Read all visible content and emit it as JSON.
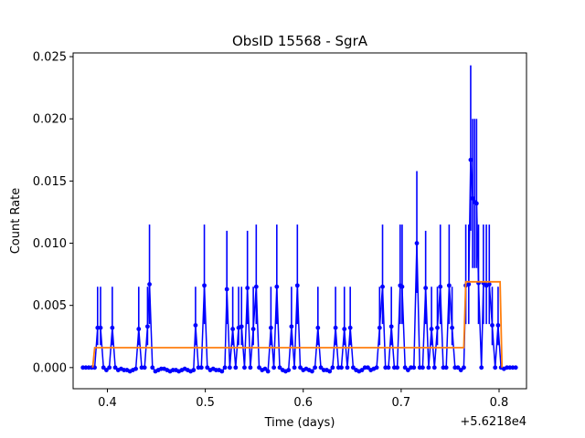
{
  "chart_data": {
    "type": "line",
    "title": "ObsID 15568 - SgrA",
    "xlabel": "Time (days)",
    "ylabel": "Count Rate",
    "x_offset_label": "+5.6218e4",
    "xlim": [
      0.365,
      0.828
    ],
    "ylim": [
      -0.0017,
      0.0253
    ],
    "xticks": [
      0.4,
      0.5,
      0.6,
      0.7,
      0.8
    ],
    "xtick_labels": [
      "0.4",
      "0.5",
      "0.6",
      "0.7",
      "0.8"
    ],
    "yticks": [
      0.0,
      0.005,
      0.01,
      0.015,
      0.02,
      0.025
    ],
    "ytick_labels": [
      "0.000",
      "0.005",
      "0.010",
      "0.015",
      "0.020",
      "0.025"
    ],
    "grid": false,
    "legend": "none",
    "series": [
      {
        "color": "#0000ff",
        "style": "line with markers and error bars",
        "points": [
          [
            0.375,
            0.0
          ],
          [
            0.378,
            0.0
          ],
          [
            0.381,
            0.0
          ],
          [
            0.384,
            0.0
          ],
          [
            0.387,
            0.0
          ],
          [
            0.39,
            0.0032
          ],
          [
            0.393,
            0.0032
          ],
          [
            0.396,
            0.0
          ],
          [
            0.399,
            -0.0002
          ],
          [
            0.402,
            0.0
          ],
          [
            0.405,
            0.0032
          ],
          [
            0.408,
            0.0
          ],
          [
            0.411,
            -0.0002
          ],
          [
            0.414,
            -0.0001
          ],
          [
            0.417,
            -0.0002
          ],
          [
            0.42,
            -0.0002
          ],
          [
            0.423,
            -0.0003
          ],
          [
            0.426,
            -0.0002
          ],
          [
            0.429,
            -0.0001
          ],
          [
            0.432,
            0.0031
          ],
          [
            0.435,
            0.0
          ],
          [
            0.438,
            0.0
          ],
          [
            0.441,
            0.0033
          ],
          [
            0.443,
            0.0067
          ],
          [
            0.446,
            0.0
          ],
          [
            0.449,
            -0.0003
          ],
          [
            0.452,
            -0.0002
          ],
          [
            0.455,
            -0.0001
          ],
          [
            0.458,
            -0.0001
          ],
          [
            0.461,
            -0.0002
          ],
          [
            0.464,
            -0.0003
          ],
          [
            0.467,
            -0.0002
          ],
          [
            0.47,
            -0.0002
          ],
          [
            0.473,
            -0.0003
          ],
          [
            0.476,
            -0.0002
          ],
          [
            0.479,
            -0.0001
          ],
          [
            0.482,
            -0.0002
          ],
          [
            0.485,
            -0.0003
          ],
          [
            0.488,
            -0.0002
          ],
          [
            0.49,
            0.0034
          ],
          [
            0.493,
            0.0
          ],
          [
            0.496,
            0.0
          ],
          [
            0.499,
            0.0066
          ],
          [
            0.502,
            0.0
          ],
          [
            0.505,
            -0.0002
          ],
          [
            0.508,
            -0.0001
          ],
          [
            0.511,
            -0.0002
          ],
          [
            0.514,
            -0.0002
          ],
          [
            0.517,
            -0.0003
          ],
          [
            0.52,
            0.0
          ],
          [
            0.522,
            0.0063
          ],
          [
            0.525,
            0.0
          ],
          [
            0.528,
            0.0031
          ],
          [
            0.531,
            0.0
          ],
          [
            0.534,
            0.0032
          ],
          [
            0.537,
            0.0033
          ],
          [
            0.54,
            0.0
          ],
          [
            0.543,
            0.0064
          ],
          [
            0.546,
            0.0
          ],
          [
            0.549,
            0.0031
          ],
          [
            0.552,
            0.0065
          ],
          [
            0.555,
            0.0
          ],
          [
            0.558,
            -0.0002
          ],
          [
            0.561,
            -0.0001
          ],
          [
            0.564,
            -0.0003
          ],
          [
            0.567,
            0.0032
          ],
          [
            0.57,
            0.0
          ],
          [
            0.573,
            0.0065
          ],
          [
            0.576,
            0.0
          ],
          [
            0.579,
            -0.0002
          ],
          [
            0.582,
            -0.0003
          ],
          [
            0.585,
            -0.0002
          ],
          [
            0.588,
            0.0033
          ],
          [
            0.591,
            0.0
          ],
          [
            0.594,
            0.0066
          ],
          [
            0.597,
            0.0
          ],
          [
            0.6,
            -0.0002
          ],
          [
            0.603,
            -0.0001
          ],
          [
            0.606,
            -0.0002
          ],
          [
            0.609,
            -0.0003
          ],
          [
            0.612,
            0.0
          ],
          [
            0.615,
            0.0032
          ],
          [
            0.618,
            0.0
          ],
          [
            0.621,
            -0.0002
          ],
          [
            0.624,
            -0.0002
          ],
          [
            0.627,
            -0.0003
          ],
          [
            0.63,
            0.0
          ],
          [
            0.633,
            0.0032
          ],
          [
            0.636,
            0.0
          ],
          [
            0.639,
            0.0
          ],
          [
            0.642,
            0.0031
          ],
          [
            0.645,
            0.0
          ],
          [
            0.648,
            0.0032
          ],
          [
            0.651,
            0.0
          ],
          [
            0.654,
            -0.0002
          ],
          [
            0.657,
            -0.0003
          ],
          [
            0.66,
            -0.0002
          ],
          [
            0.663,
            0.0
          ],
          [
            0.666,
            0.0
          ],
          [
            0.669,
            -0.0002
          ],
          [
            0.672,
            -0.0001
          ],
          [
            0.675,
            0.0
          ],
          [
            0.678,
            0.0032
          ],
          [
            0.681,
            0.0065
          ],
          [
            0.684,
            0.0
          ],
          [
            0.687,
            0.0
          ],
          [
            0.69,
            0.0033
          ],
          [
            0.693,
            0.0
          ],
          [
            0.696,
            0.0
          ],
          [
            0.699,
            0.0066
          ],
          [
            0.701,
            0.0065
          ],
          [
            0.704,
            0.0
          ],
          [
            0.707,
            -0.0002
          ],
          [
            0.71,
            0.0
          ],
          [
            0.713,
            0.0
          ],
          [
            0.716,
            0.01
          ],
          [
            0.719,
            0.0
          ],
          [
            0.722,
            0.0
          ],
          [
            0.725,
            0.0064
          ],
          [
            0.728,
            0.0
          ],
          [
            0.731,
            0.0031
          ],
          [
            0.734,
            0.0
          ],
          [
            0.737,
            0.0032
          ],
          [
            0.74,
            0.0065
          ],
          [
            0.743,
            0.0
          ],
          [
            0.746,
            0.0
          ],
          [
            0.749,
            0.0066
          ],
          [
            0.752,
            0.0032
          ],
          [
            0.755,
            0.0
          ],
          [
            0.758,
            0.0
          ],
          [
            0.761,
            -0.0002
          ],
          [
            0.764,
            0.0
          ],
          [
            0.766,
            0.0066
          ],
          [
            0.769,
            0.0067
          ],
          [
            0.771,
            0.0167
          ],
          [
            0.773,
            0.0136
          ],
          [
            0.775,
            0.0133
          ],
          [
            0.777,
            0.0132
          ],
          [
            0.779,
            0.0068
          ],
          [
            0.782,
            0.0
          ],
          [
            0.784,
            0.0068
          ],
          [
            0.787,
            0.0066
          ],
          [
            0.79,
            0.0067
          ],
          [
            0.793,
            0.0034
          ],
          [
            0.796,
            0.0
          ],
          [
            0.799,
            0.0034
          ],
          [
            0.802,
            0.0
          ],
          [
            0.805,
            -0.0001
          ],
          [
            0.808,
            0.0
          ],
          [
            0.811,
            0.0
          ],
          [
            0.814,
            0.0
          ],
          [
            0.817,
            0.0
          ]
        ],
        "error_bars": [
          [
            0.39,
            0.0018,
            0.0065
          ],
          [
            0.393,
            0.0018,
            0.0065
          ],
          [
            0.405,
            0.0018,
            0.0065
          ],
          [
            0.432,
            0.0018,
            0.0065
          ],
          [
            0.441,
            0.0018,
            0.0065
          ],
          [
            0.443,
            0.0035,
            0.0115
          ],
          [
            0.49,
            0.0018,
            0.0065
          ],
          [
            0.499,
            0.0035,
            0.0115
          ],
          [
            0.522,
            0.0035,
            0.011
          ],
          [
            0.528,
            0.0018,
            0.0065
          ],
          [
            0.534,
            0.0018,
            0.0065
          ],
          [
            0.537,
            0.0018,
            0.0065
          ],
          [
            0.543,
            0.0035,
            0.011
          ],
          [
            0.549,
            0.0018,
            0.0065
          ],
          [
            0.552,
            0.0035,
            0.0115
          ],
          [
            0.567,
            0.0018,
            0.0065
          ],
          [
            0.573,
            0.0035,
            0.0115
          ],
          [
            0.588,
            0.0018,
            0.0065
          ],
          [
            0.594,
            0.0035,
            0.0115
          ],
          [
            0.615,
            0.0018,
            0.0065
          ],
          [
            0.633,
            0.0018,
            0.0065
          ],
          [
            0.642,
            0.0018,
            0.0065
          ],
          [
            0.648,
            0.0018,
            0.0065
          ],
          [
            0.678,
            0.0018,
            0.0065
          ],
          [
            0.681,
            0.0035,
            0.0115
          ],
          [
            0.69,
            0.0018,
            0.0065
          ],
          [
            0.699,
            0.0035,
            0.0115
          ],
          [
            0.701,
            0.0035,
            0.0115
          ],
          [
            0.716,
            0.006,
            0.0158
          ],
          [
            0.725,
            0.0035,
            0.011
          ],
          [
            0.731,
            0.0018,
            0.0065
          ],
          [
            0.737,
            0.0018,
            0.0065
          ],
          [
            0.74,
            0.0035,
            0.0115
          ],
          [
            0.749,
            0.0035,
            0.0115
          ],
          [
            0.752,
            0.0018,
            0.0065
          ],
          [
            0.766,
            0.0035,
            0.0115
          ],
          [
            0.769,
            0.0035,
            0.0115
          ],
          [
            0.771,
            0.011,
            0.0243
          ],
          [
            0.773,
            0.008,
            0.02
          ],
          [
            0.775,
            0.008,
            0.02
          ],
          [
            0.777,
            0.008,
            0.02
          ],
          [
            0.779,
            0.0035,
            0.0115
          ],
          [
            0.784,
            0.0035,
            0.0115
          ],
          [
            0.787,
            0.0035,
            0.0115
          ],
          [
            0.79,
            0.0035,
            0.0115
          ],
          [
            0.793,
            0.0018,
            0.0065
          ],
          [
            0.799,
            0.0018,
            0.0065
          ]
        ]
      },
      {
        "color": "#ff7f0e",
        "style": "step",
        "points": [
          [
            0.385,
            0.0
          ],
          [
            0.387,
            0.0016
          ],
          [
            0.764,
            0.0016
          ],
          [
            0.766,
            0.0069
          ],
          [
            0.801,
            0.0069
          ],
          [
            0.803,
            0.0
          ]
        ]
      }
    ]
  }
}
